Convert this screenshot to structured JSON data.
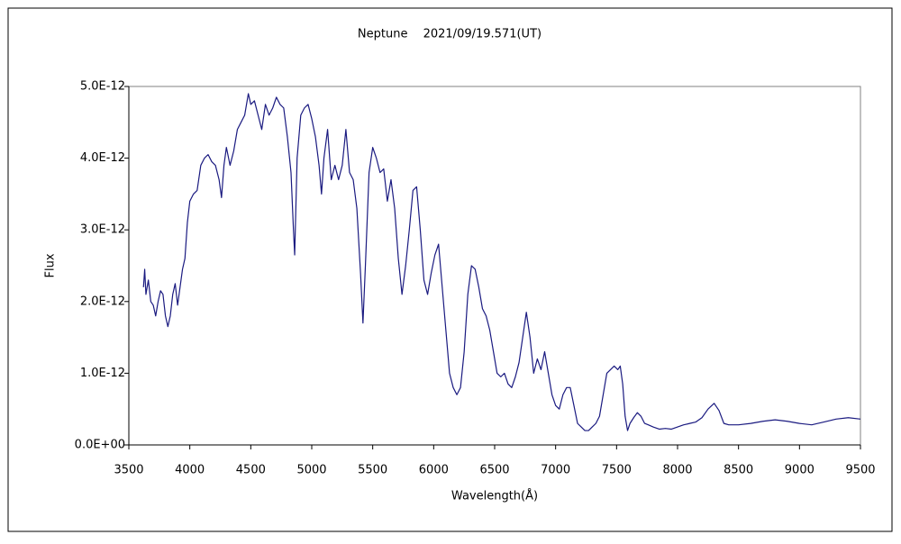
{
  "chart_data": {
    "type": "line",
    "title": "Neptune　 2021/09/19.571(UT)",
    "x_label": "Wavelength(Å)",
    "y_label": "Flux",
    "xlim": [
      3500,
      9500
    ],
    "xticks": [
      3500,
      4000,
      4500,
      5000,
      5500,
      6000,
      6500,
      7000,
      7500,
      8000,
      8500,
      9000,
      9500
    ],
    "ylim": [
      0,
      5e-12
    ],
    "yticks": [
      {
        "value": 0,
        "label": "0.0E+00"
      },
      {
        "value": 1e-12,
        "label": "1.0E-12"
      },
      {
        "value": 2e-12,
        "label": "2.0E-12"
      },
      {
        "value": 3e-12,
        "label": "3.0E-12"
      },
      {
        "value": 4e-12,
        "label": "4.0E-12"
      },
      {
        "value": 5e-12,
        "label": "5.0E-12"
      }
    ],
    "grid": false,
    "x": [
      3620,
      3630,
      3640,
      3660,
      3680,
      3700,
      3720,
      3740,
      3760,
      3780,
      3800,
      3820,
      3840,
      3860,
      3880,
      3900,
      3920,
      3940,
      3960,
      3980,
      4000,
      4030,
      4060,
      4090,
      4120,
      4150,
      4180,
      4210,
      4240,
      4260,
      4280,
      4300,
      4330,
      4360,
      4390,
      4420,
      4450,
      4480,
      4500,
      4530,
      4560,
      4590,
      4620,
      4650,
      4680,
      4710,
      4740,
      4770,
      4800,
      4830,
      4850,
      4860,
      4880,
      4910,
      4940,
      4970,
      5000,
      5030,
      5060,
      5080,
      5100,
      5130,
      5160,
      5190,
      5220,
      5250,
      5280,
      5310,
      5340,
      5370,
      5400,
      5420,
      5440,
      5470,
      5500,
      5530,
      5560,
      5590,
      5620,
      5650,
      5680,
      5710,
      5740,
      5770,
      5800,
      5830,
      5860,
      5890,
      5920,
      5950,
      5980,
      6010,
      6040,
      6070,
      6100,
      6130,
      6160,
      6190,
      6220,
      6250,
      6280,
      6310,
      6340,
      6370,
      6400,
      6430,
      6460,
      6490,
      6520,
      6550,
      6580,
      6610,
      6640,
      6670,
      6700,
      6730,
      6760,
      6790,
      6820,
      6850,
      6880,
      6910,
      6940,
      6970,
      7000,
      7030,
      7060,
      7090,
      7120,
      7150,
      7180,
      7210,
      7240,
      7270,
      7300,
      7330,
      7360,
      7390,
      7420,
      7450,
      7480,
      7510,
      7530,
      7550,
      7570,
      7590,
      7610,
      7640,
      7670,
      7700,
      7730,
      7760,
      7800,
      7850,
      7900,
      7950,
      8000,
      8050,
      8100,
      8150,
      8200,
      8250,
      8300,
      8340,
      8380,
      8420,
      8500,
      8600,
      8700,
      8800,
      8900,
      9000,
      9100,
      9200,
      9300,
      9400,
      9500
    ],
    "series": [
      {
        "color": "#1a1a80",
        "values": [
          2.2e-12,
          2.45e-12,
          2.1e-12,
          2.3e-12,
          2e-12,
          1.95e-12,
          1.8e-12,
          2e-12,
          2.15e-12,
          2.1e-12,
          1.8e-12,
          1.65e-12,
          1.8e-12,
          2.1e-12,
          2.25e-12,
          1.95e-12,
          2.2e-12,
          2.45e-12,
          2.6e-12,
          3.1e-12,
          3.4e-12,
          3.5e-12,
          3.55e-12,
          3.9e-12,
          4e-12,
          4.05e-12,
          3.95e-12,
          3.9e-12,
          3.7e-12,
          3.45e-12,
          3.9e-12,
          4.15e-12,
          3.9e-12,
          4.1e-12,
          4.4e-12,
          4.5e-12,
          4.6e-12,
          4.9e-12,
          4.75e-12,
          4.8e-12,
          4.6e-12,
          4.4e-12,
          4.75e-12,
          4.6e-12,
          4.7e-12,
          4.85e-12,
          4.75e-12,
          4.7e-12,
          4.3e-12,
          3.8e-12,
          3e-12,
          2.65e-12,
          4e-12,
          4.6e-12,
          4.7e-12,
          4.75e-12,
          4.55e-12,
          4.3e-12,
          3.9e-12,
          3.5e-12,
          4e-12,
          4.4e-12,
          3.7e-12,
          3.9e-12,
          3.7e-12,
          3.9e-12,
          4.4e-12,
          3.8e-12,
          3.7e-12,
          3.3e-12,
          2.4e-12,
          1.7e-12,
          2.5e-12,
          3.8e-12,
          4.15e-12,
          4e-12,
          3.8e-12,
          3.85e-12,
          3.4e-12,
          3.7e-12,
          3.3e-12,
          2.6e-12,
          2.1e-12,
          2.5e-12,
          3e-12,
          3.55e-12,
          3.6e-12,
          3e-12,
          2.3e-12,
          2.1e-12,
          2.4e-12,
          2.65e-12,
          2.8e-12,
          2.2e-12,
          1.6e-12,
          1e-12,
          8e-13,
          7e-13,
          8e-13,
          1.3e-12,
          2.1e-12,
          2.5e-12,
          2.45e-12,
          2.2e-12,
          1.9e-12,
          1.8e-12,
          1.6e-12,
          1.3e-12,
          1e-12,
          9.5e-13,
          1e-12,
          8.5e-13,
          8e-13,
          9.5e-13,
          1.15e-12,
          1.5e-12,
          1.85e-12,
          1.5e-12,
          1e-12,
          1.2e-12,
          1.05e-12,
          1.3e-12,
          1e-12,
          7e-13,
          5.5e-13,
          5e-13,
          7e-13,
          8e-13,
          8e-13,
          5.5e-13,
          3e-13,
          2.5e-13,
          2e-13,
          2e-13,
          2.5e-13,
          3e-13,
          4e-13,
          7e-13,
          1e-12,
          1.05e-12,
          1.1e-12,
          1.05e-12,
          1.1e-12,
          8.5e-13,
          4e-13,
          2e-13,
          3e-13,
          3.8e-13,
          4.5e-13,
          4e-13,
          3e-13,
          2.8e-13,
          2.5e-13,
          2.2e-13,
          2.3e-13,
          2.2e-13,
          2.5e-13,
          2.8e-13,
          3e-13,
          3.2e-13,
          3.8e-13,
          5e-13,
          5.8e-13,
          4.8e-13,
          3e-13,
          2.8e-13,
          2.8e-13,
          3e-13,
          3.3e-13,
          3.5e-13,
          3.3e-13,
          3e-13,
          2.8e-13,
          3.2e-13,
          3.6e-13,
          3.8e-13,
          3.6e-13
        ]
      }
    ]
  }
}
